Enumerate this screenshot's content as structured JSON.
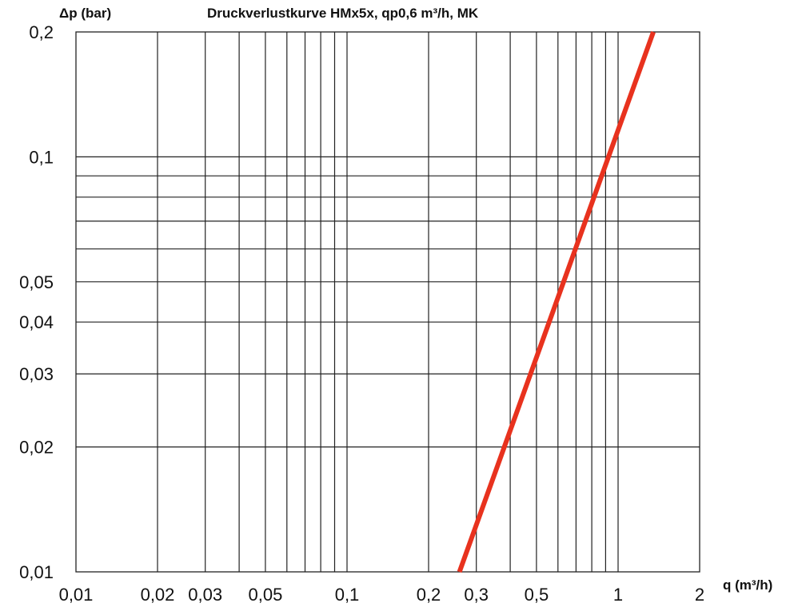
{
  "chart_data": {
    "type": "line",
    "title": "Druckverlustkurve HMx5x, qp0,6 m³/h, MK",
    "xlabel": "q (m³/h)",
    "ylabel": "Δp (bar)",
    "xscale": "log",
    "yscale": "log",
    "xlim": [
      0.01,
      2
    ],
    "ylim": [
      0.01,
      0.2
    ],
    "grid": true,
    "x_tick_labels": [
      "0,01",
      "0,02",
      "0,03",
      "0,05",
      "0,1",
      "0,2",
      "0,3",
      "0,5",
      "1",
      "2"
    ],
    "x_tick_values": [
      0.01,
      0.02,
      0.03,
      0.05,
      0.1,
      0.2,
      0.3,
      0.5,
      1,
      2
    ],
    "y_tick_labels": [
      "0,01",
      "0,02",
      "0,03",
      "0,04",
      "0,05",
      "0,1",
      "0,2"
    ],
    "y_tick_values": [
      0.01,
      0.02,
      0.03,
      0.04,
      0.05,
      0.1,
      0.2
    ],
    "x_gridlines": [
      0.02,
      0.03,
      0.04,
      0.05,
      0.06,
      0.07,
      0.08,
      0.09,
      0.1,
      0.2,
      0.3,
      0.4,
      0.5,
      0.6,
      0.7,
      0.8,
      0.9,
      1
    ],
    "y_gridlines": [
      0.02,
      0.03,
      0.04,
      0.05,
      0.06,
      0.07,
      0.08,
      0.09,
      0.1
    ],
    "series": [
      {
        "color": "#e8321e",
        "x": [
          0.26,
          1.35
        ],
        "y": [
          0.01,
          0.2
        ]
      }
    ]
  }
}
